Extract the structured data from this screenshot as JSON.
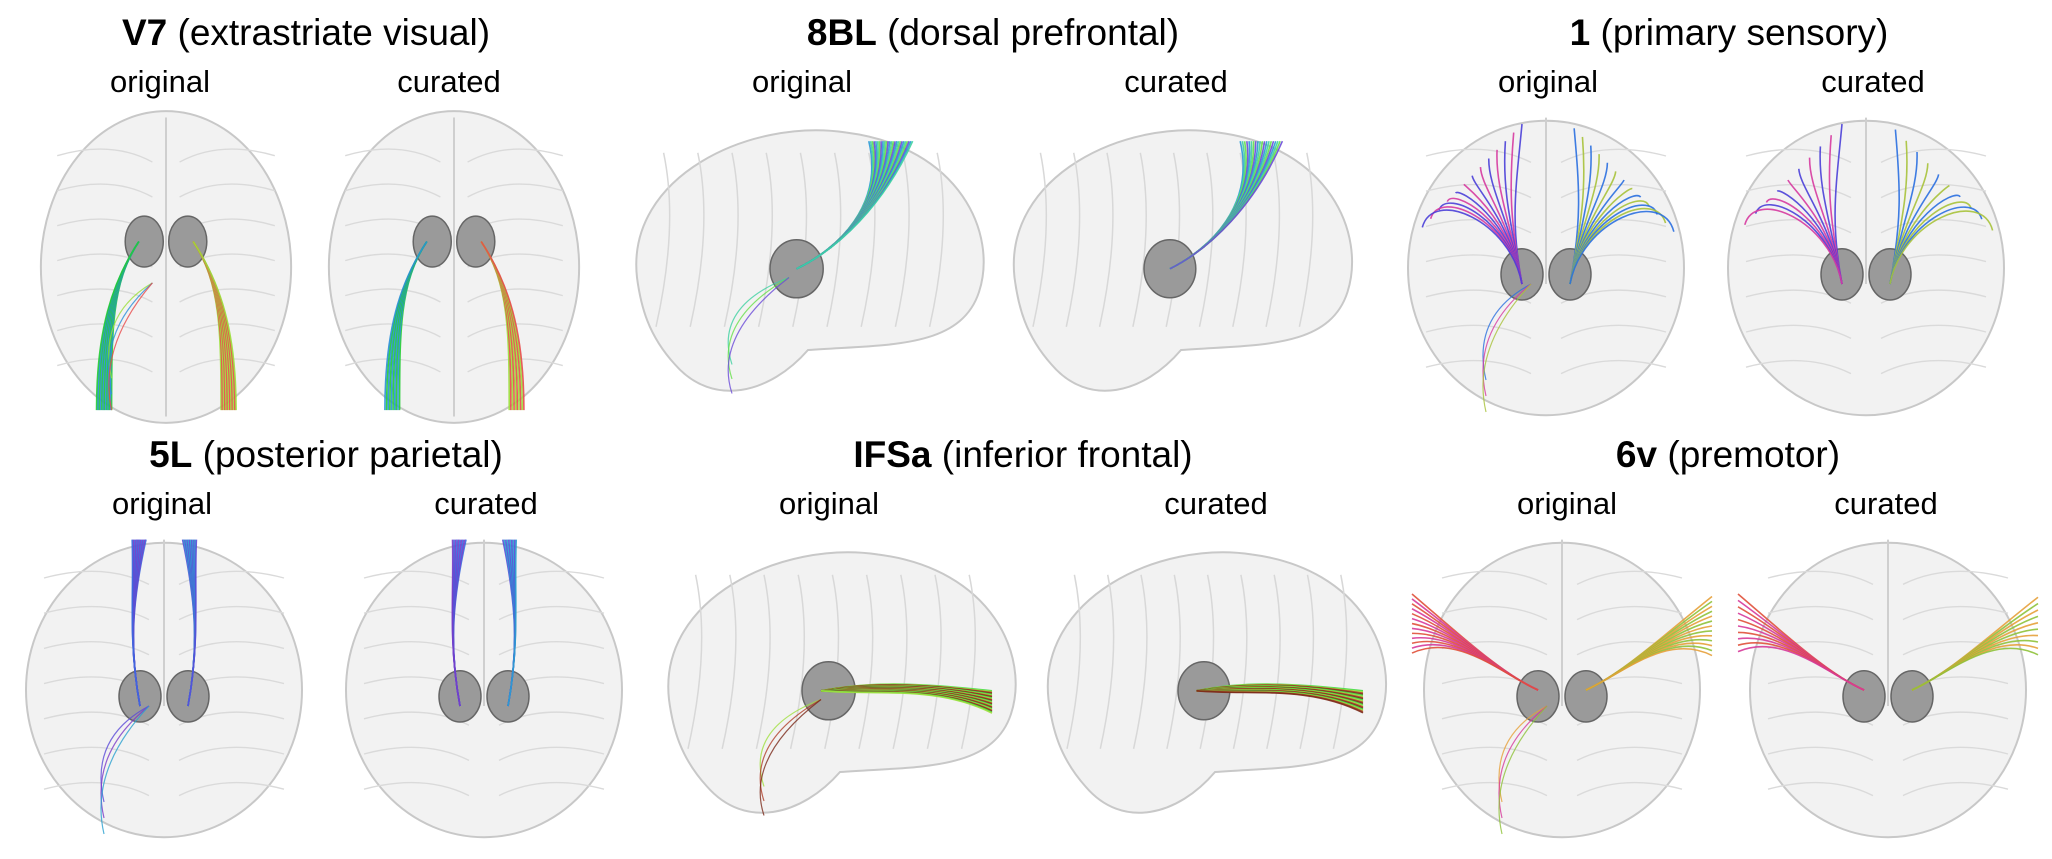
{
  "panels": [
    {
      "region_code": "V7",
      "region_name": "(extrastriate visual)",
      "original_label": "original",
      "curated_label": "curated",
      "view": "axial",
      "tract_colors": [
        "#22cc33",
        "#9be03a",
        "#2a8fd8",
        "#e84a4a"
      ]
    },
    {
      "region_code": "8BL",
      "region_name": "(dorsal prefrontal)",
      "original_label": "original",
      "curated_label": "curated",
      "view": "sagittal",
      "tract_colors": [
        "#2a9ad6",
        "#3fd1a0",
        "#66e04a",
        "#6a4bd8"
      ]
    },
    {
      "region_code": "1",
      "region_name": "(primary sensory)",
      "original_label": "original",
      "curated_label": "curated",
      "view": "coronal",
      "tract_colors": [
        "#4a3fd8",
        "#2a6fe0",
        "#d63aa0",
        "#a7c23a"
      ]
    },
    {
      "region_code": "5L",
      "region_name": "(posterior parietal)",
      "original_label": "original",
      "curated_label": "curated",
      "view": "coronal",
      "tract_colors": [
        "#3a6ae0",
        "#5a4ad8",
        "#7a3ac8",
        "#2aa0d0"
      ]
    },
    {
      "region_code": "IFSa",
      "region_name": "(inferior frontal)",
      "original_label": "original",
      "curated_label": "curated",
      "view": "sagittal",
      "tract_colors": [
        "#44dd44",
        "#a0e040",
        "#b0402a",
        "#7a2a1a"
      ]
    },
    {
      "region_code": "6v",
      "region_name": "(premotor)",
      "original_label": "original",
      "curated_label": "curated",
      "view": "coronal",
      "tract_colors": [
        "#e0503a",
        "#e6a03a",
        "#d63a9a",
        "#8fc23a"
      ]
    }
  ]
}
